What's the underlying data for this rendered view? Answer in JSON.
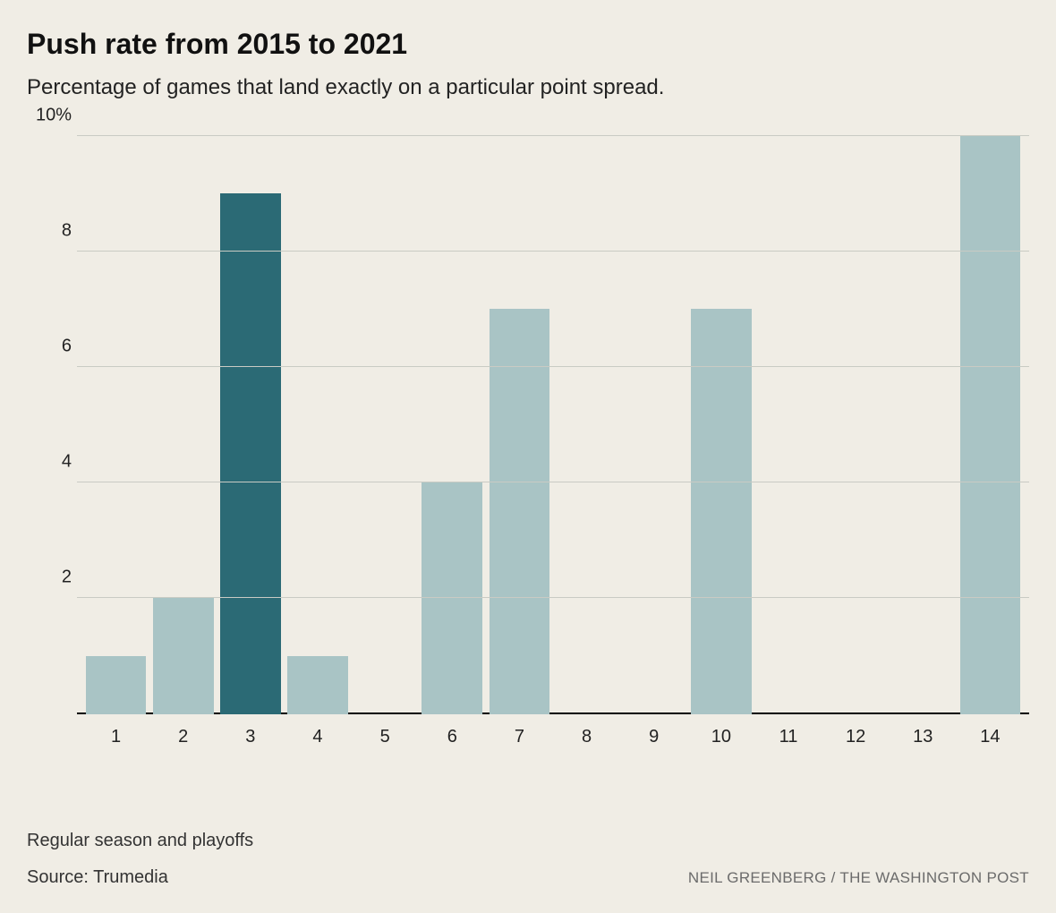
{
  "title": "Push rate from 2015 to 2021",
  "subtitle": "Percentage of games that land exactly on a particular point spread.",
  "chart": {
    "type": "bar",
    "background_color": "#f0ede5",
    "grid_color": "#c9cbc4",
    "baseline_color": "#000000",
    "bar_color_default": "#a9c4c5",
    "bar_color_highlight": "#2b6a75",
    "categories": [
      "1",
      "2",
      "3",
      "4",
      "5",
      "6",
      "7",
      "8",
      "9",
      "10",
      "11",
      "12",
      "13",
      "14"
    ],
    "values": [
      1,
      2,
      9,
      1,
      0,
      4,
      7,
      0,
      0,
      7,
      0,
      0,
      0,
      10
    ],
    "highlighted_index": 2,
    "y_ticks": [
      2,
      4,
      6,
      8,
      10
    ],
    "y_top_label": "10%",
    "y_max": 10,
    "y_min": 0,
    "bar_width_pct": 90,
    "title_fontsize": 32,
    "subtitle_fontsize": 24,
    "axis_label_fontsize": 20,
    "label_color": "#222222"
  },
  "footnote": "Regular season and playoffs",
  "source": "Source: Trumedia",
  "credit": "NEIL GREENBERG / THE WASHINGTON POST"
}
